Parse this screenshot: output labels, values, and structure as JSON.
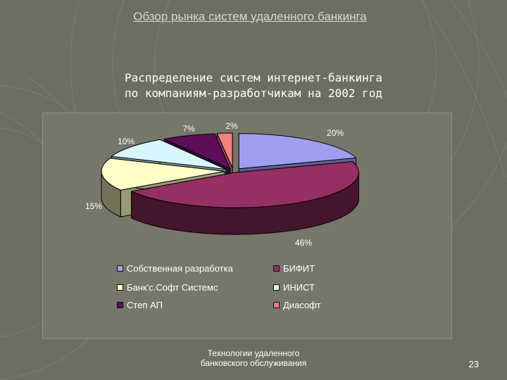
{
  "slide": {
    "header": "Обзор рынка систем удаленного банкинга",
    "footer_line1": "Технологии удаленного",
    "footer_line2": "банковского обслуживания",
    "page_number": "23"
  },
  "chart_data": {
    "type": "pie",
    "title_line1": "Распределение систем интернет-банкинга",
    "title_line2": "по компаниям-разработчикам  на 2002 год",
    "style": "3d-exploded",
    "legend_position": "bottom",
    "series": [
      {
        "name": "Собственная разработка",
        "value": 20,
        "label": "20%",
        "color": "#9f9ff2"
      },
      {
        "name": "БИФИТ",
        "value": 46,
        "label": "46%",
        "color": "#962f63"
      },
      {
        "name": "Банк'с.Софт Системс",
        "value": 15,
        "label": "15%",
        "color": "#ffffc8"
      },
      {
        "name": "ИНИСТ",
        "value": 10,
        "label": "10%",
        "color": "#d8f6fc"
      },
      {
        "name": "Степ АП",
        "value": 7,
        "label": "7%",
        "color": "#5e0d58"
      },
      {
        "name": "Диасофт",
        "value": 2,
        "label": "2%",
        "color": "#f47f7c"
      }
    ]
  }
}
